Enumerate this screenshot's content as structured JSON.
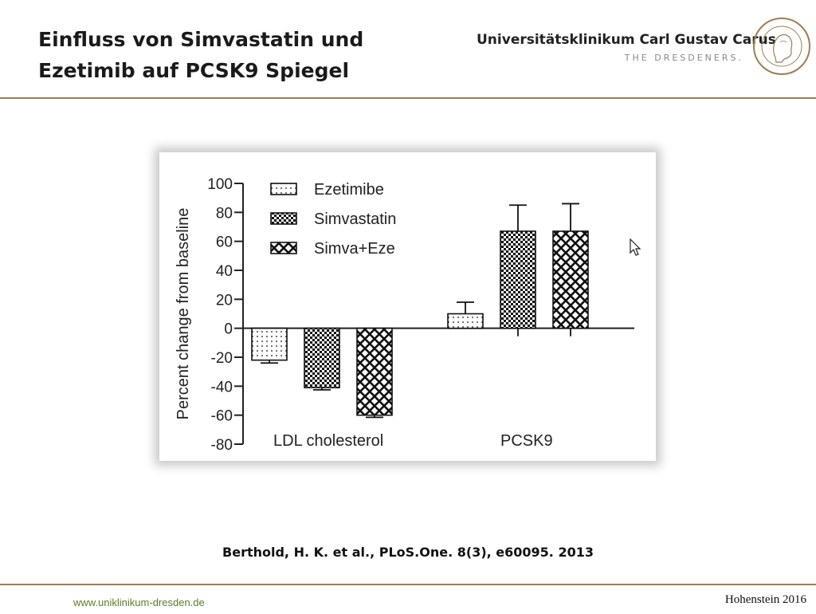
{
  "slide": {
    "title_line1": "Einfluss von Simvastatin und",
    "title_line2": "Ezetimib auf PCSK9 Spiegel"
  },
  "header": {
    "brand_name": "Universitätsklinikum Carl Gustav Carus",
    "brand_tagline": "THE DRESDENERS.",
    "seal_icon": "carl-gustav-carus-seal-icon",
    "seal_text": "Carl Gustav Carus 1789 - 1869"
  },
  "citation": "Berthold, H. K. et al., PLoS.One. 8(3), e60095. 2013",
  "footer": {
    "url": "www.uniklinikum-dresden.de",
    "right_text": "Hohenstein 2016"
  },
  "colors": {
    "accent_rule": "#a07d4f",
    "footer_url": "#5a7d2a"
  },
  "chart_data": {
    "type": "bar",
    "title": "",
    "ylabel": "Percent change from baseline",
    "xlabel": "",
    "categories": [
      "LDL cholesterol",
      "PCSK9"
    ],
    "ylim": [
      -80,
      100
    ],
    "yticks": [
      100,
      80,
      60,
      40,
      20,
      0,
      -20,
      -40,
      -60,
      -80
    ],
    "legend_position": "top-left",
    "grid": false,
    "series": [
      {
        "name": "Ezetimibe",
        "pattern": "dots",
        "values": [
          -22,
          10
        ],
        "errors": [
          2,
          8
        ]
      },
      {
        "name": "Simvastatin",
        "pattern": "checker",
        "values": [
          -41,
          67
        ],
        "errors": [
          1.5,
          18
        ]
      },
      {
        "name": "Simva+Eze",
        "pattern": "crosshatch",
        "values": [
          -60,
          67
        ],
        "errors": [
          1.5,
          19
        ]
      }
    ]
  }
}
